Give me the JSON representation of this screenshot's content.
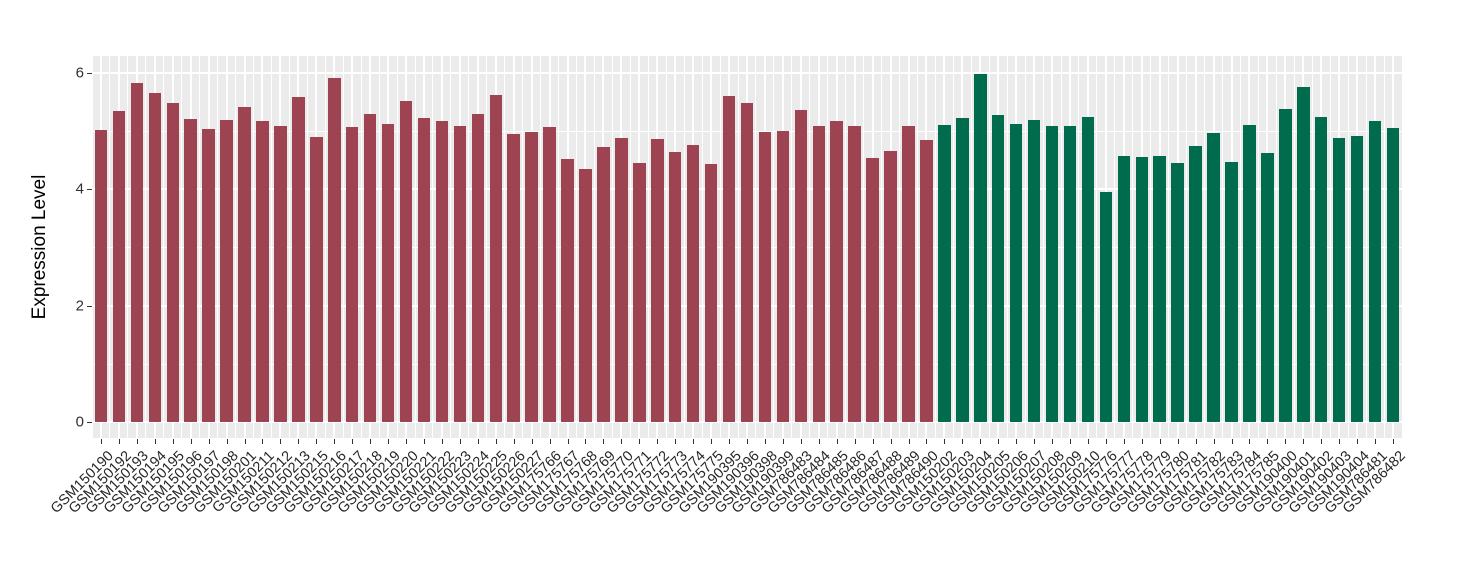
{
  "chart_data": {
    "type": "bar",
    "title": "",
    "xlabel": "",
    "ylabel": "Expression Level",
    "yticks": [
      0,
      2,
      4,
      6
    ],
    "ylim": [
      0,
      6.3
    ],
    "grid": true,
    "legend_position": "none",
    "panel_bg_color": "#EBEBEB",
    "grid_color": "#FFFFFF",
    "group_colors": {
      "group1": "#9E4352",
      "group2": "#006B4D"
    },
    "bars": [
      {
        "label": "GSM150190",
        "value": 5.02,
        "group": "group1"
      },
      {
        "label": "GSM150192",
        "value": 5.34,
        "group": "group1"
      },
      {
        "label": "GSM150193",
        "value": 5.83,
        "group": "group1"
      },
      {
        "label": "GSM150194",
        "value": 5.66,
        "group": "group1"
      },
      {
        "label": "GSM150195",
        "value": 5.48,
        "group": "group1"
      },
      {
        "label": "GSM150196",
        "value": 5.21,
        "group": "group1"
      },
      {
        "label": "GSM150197",
        "value": 5.03,
        "group": "group1"
      },
      {
        "label": "GSM150198",
        "value": 5.19,
        "group": "group1"
      },
      {
        "label": "GSM150201",
        "value": 5.41,
        "group": "group1"
      },
      {
        "label": "GSM150211",
        "value": 5.17,
        "group": "group1"
      },
      {
        "label": "GSM150212",
        "value": 5.09,
        "group": "group1"
      },
      {
        "label": "GSM150213",
        "value": 5.59,
        "group": "group1"
      },
      {
        "label": "GSM150215",
        "value": 4.9,
        "group": "group1"
      },
      {
        "label": "GSM150216",
        "value": 5.91,
        "group": "group1"
      },
      {
        "label": "GSM150217",
        "value": 5.07,
        "group": "group1"
      },
      {
        "label": "GSM150218",
        "value": 5.29,
        "group": "group1"
      },
      {
        "label": "GSM150219",
        "value": 5.12,
        "group": "group1"
      },
      {
        "label": "GSM150220",
        "value": 5.52,
        "group": "group1"
      },
      {
        "label": "GSM150221",
        "value": 5.22,
        "group": "group1"
      },
      {
        "label": "GSM150222",
        "value": 5.17,
        "group": "group1"
      },
      {
        "label": "GSM150223",
        "value": 5.09,
        "group": "group1"
      },
      {
        "label": "GSM150224",
        "value": 5.29,
        "group": "group1"
      },
      {
        "label": "GSM150225",
        "value": 5.62,
        "group": "group1"
      },
      {
        "label": "GSM150226",
        "value": 4.95,
        "group": "group1"
      },
      {
        "label": "GSM150227",
        "value": 4.98,
        "group": "group1"
      },
      {
        "label": "GSM175766",
        "value": 5.07,
        "group": "group1"
      },
      {
        "label": "GSM175767",
        "value": 4.52,
        "group": "group1"
      },
      {
        "label": "GSM175768",
        "value": 4.35,
        "group": "group1"
      },
      {
        "label": "GSM175769",
        "value": 4.72,
        "group": "group1"
      },
      {
        "label": "GSM175770",
        "value": 4.88,
        "group": "group1"
      },
      {
        "label": "GSM175771",
        "value": 4.45,
        "group": "group1"
      },
      {
        "label": "GSM175772",
        "value": 4.86,
        "group": "group1"
      },
      {
        "label": "GSM175773",
        "value": 4.64,
        "group": "group1"
      },
      {
        "label": "GSM175774",
        "value": 4.76,
        "group": "group1"
      },
      {
        "label": "GSM175775",
        "value": 4.43,
        "group": "group1"
      },
      {
        "label": "GSM190395",
        "value": 5.6,
        "group": "group1"
      },
      {
        "label": "GSM190396",
        "value": 5.48,
        "group": "group1"
      },
      {
        "label": "GSM190398",
        "value": 4.98,
        "group": "group1"
      },
      {
        "label": "GSM190399",
        "value": 5.0,
        "group": "group1"
      },
      {
        "label": "GSM786483",
        "value": 5.36,
        "group": "group1"
      },
      {
        "label": "GSM786484",
        "value": 5.09,
        "group": "group1"
      },
      {
        "label": "GSM786485",
        "value": 5.17,
        "group": "group1"
      },
      {
        "label": "GSM786486",
        "value": 5.09,
        "group": "group1"
      },
      {
        "label": "GSM786487",
        "value": 4.53,
        "group": "group1"
      },
      {
        "label": "GSM786488",
        "value": 4.66,
        "group": "group1"
      },
      {
        "label": "GSM786489",
        "value": 5.09,
        "group": "group1"
      },
      {
        "label": "GSM786490",
        "value": 4.84,
        "group": "group1"
      },
      {
        "label": "GSM150202",
        "value": 5.1,
        "group": "group2"
      },
      {
        "label": "GSM150203",
        "value": 5.22,
        "group": "group2"
      },
      {
        "label": "GSM150204",
        "value": 5.98,
        "group": "group2"
      },
      {
        "label": "GSM150205",
        "value": 5.28,
        "group": "group2"
      },
      {
        "label": "GSM150206",
        "value": 5.12,
        "group": "group2"
      },
      {
        "label": "GSM150207",
        "value": 5.19,
        "group": "group2"
      },
      {
        "label": "GSM150208",
        "value": 5.09,
        "group": "group2"
      },
      {
        "label": "GSM150209",
        "value": 5.09,
        "group": "group2"
      },
      {
        "label": "GSM150210",
        "value": 5.24,
        "group": "group2"
      },
      {
        "label": "GSM175776",
        "value": 3.95,
        "group": "group2"
      },
      {
        "label": "GSM175777",
        "value": 4.57,
        "group": "group2"
      },
      {
        "label": "GSM175778",
        "value": 4.55,
        "group": "group2"
      },
      {
        "label": "GSM175779",
        "value": 4.57,
        "group": "group2"
      },
      {
        "label": "GSM175780",
        "value": 4.45,
        "group": "group2"
      },
      {
        "label": "GSM175781",
        "value": 4.74,
        "group": "group2"
      },
      {
        "label": "GSM175782",
        "value": 4.97,
        "group": "group2"
      },
      {
        "label": "GSM175783",
        "value": 4.47,
        "group": "group2"
      },
      {
        "label": "GSM175784",
        "value": 5.1,
        "group": "group2"
      },
      {
        "label": "GSM175785",
        "value": 4.62,
        "group": "group2"
      },
      {
        "label": "GSM190400",
        "value": 5.38,
        "group": "group2"
      },
      {
        "label": "GSM190401",
        "value": 5.76,
        "group": "group2"
      },
      {
        "label": "GSM190402",
        "value": 5.24,
        "group": "group2"
      },
      {
        "label": "GSM190403",
        "value": 4.88,
        "group": "group2"
      },
      {
        "label": "GSM190404",
        "value": 4.91,
        "group": "group2"
      },
      {
        "label": "GSM786481",
        "value": 5.17,
        "group": "group2"
      },
      {
        "label": "GSM786482",
        "value": 5.05,
        "group": "group2"
      }
    ]
  }
}
